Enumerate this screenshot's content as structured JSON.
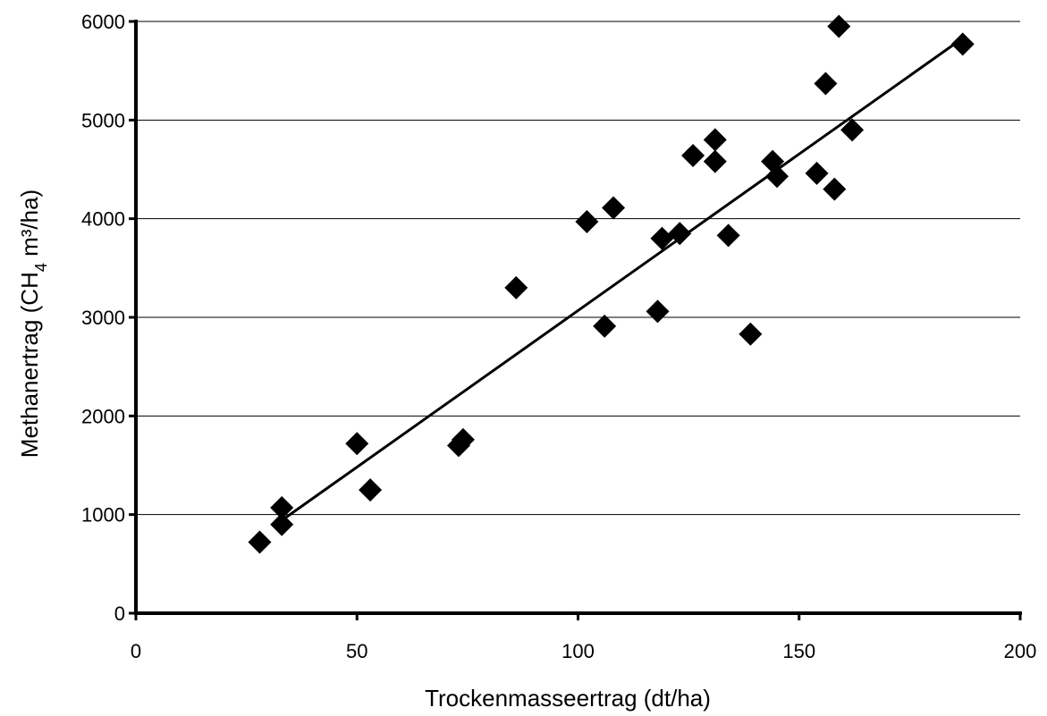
{
  "chart_data": {
    "type": "scatter",
    "title": "",
    "xlabel": "Trockenmasseertrag (dt/ha)",
    "ylabel": "Methanertrag (CH₄ m³/ha)",
    "ylabel_parts": {
      "pre": "Methanertrag (CH",
      "sub": "4",
      "post": " m³/ha)"
    },
    "xlim": [
      0,
      200
    ],
    "ylim": [
      0,
      6000
    ],
    "xticks": [
      0,
      50,
      100,
      150,
      200
    ],
    "yticks": [
      0,
      1000,
      2000,
      3000,
      4000,
      5000,
      6000
    ],
    "grid": "horizontal",
    "legend": "none",
    "marker_color": "#000000",
    "points": [
      {
        "x": 28,
        "y": 720
      },
      {
        "x": 33,
        "y": 900
      },
      {
        "x": 33,
        "y": 1070
      },
      {
        "x": 50,
        "y": 1720
      },
      {
        "x": 53,
        "y": 1250
      },
      {
        "x": 73,
        "y": 1700
      },
      {
        "x": 74,
        "y": 1760
      },
      {
        "x": 86,
        "y": 3300
      },
      {
        "x": 102,
        "y": 3970
      },
      {
        "x": 106,
        "y": 2910
      },
      {
        "x": 108,
        "y": 4110
      },
      {
        "x": 118,
        "y": 3060
      },
      {
        "x": 119,
        "y": 3800
      },
      {
        "x": 123,
        "y": 3850
      },
      {
        "x": 126,
        "y": 4640
      },
      {
        "x": 131,
        "y": 4580
      },
      {
        "x": 131,
        "y": 4800
      },
      {
        "x": 134,
        "y": 3830
      },
      {
        "x": 139,
        "y": 2830
      },
      {
        "x": 144,
        "y": 4580
      },
      {
        "x": 145,
        "y": 4430
      },
      {
        "x": 154,
        "y": 4460
      },
      {
        "x": 156,
        "y": 5370
      },
      {
        "x": 158,
        "y": 4300
      },
      {
        "x": 159,
        "y": 5950
      },
      {
        "x": 162,
        "y": 4900
      },
      {
        "x": 187,
        "y": 5770
      }
    ],
    "trendline": {
      "x": [
        32,
        187
      ],
      "y": [
        910,
        5830
      ]
    }
  }
}
